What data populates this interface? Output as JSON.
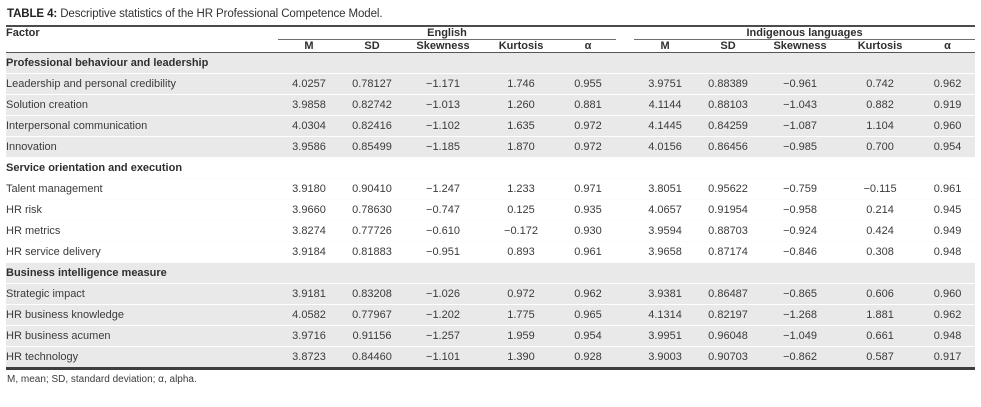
{
  "title": {
    "label": "TABLE 4:",
    "text": "Descriptive statistics of the HR Professional Competence Model."
  },
  "table": {
    "factor_header": "Factor",
    "groups": [
      {
        "label": "English"
      },
      {
        "label": "Indigenous languages"
      }
    ],
    "subheaders": [
      "M",
      "SD",
      "Skewness",
      "Kurtosis",
      "α"
    ],
    "sections": [
      {
        "name": "Professional behaviour and leadership",
        "shaded": true,
        "rows": [
          {
            "factor": "Leadership and personal credibility",
            "english": [
              "4.0257",
              "0.78127",
              "−1.171",
              "1.746",
              "0.955"
            ],
            "indigenous": [
              "3.9751",
              "0.88389",
              "−0.961",
              "0.742",
              "0.962"
            ]
          },
          {
            "factor": "Solution creation",
            "english": [
              "3.9858",
              "0.82742",
              "−1.013",
              "1.260",
              "0.881"
            ],
            "indigenous": [
              "4.1144",
              "0.88103",
              "−1.043",
              "0.882",
              "0.919"
            ]
          },
          {
            "factor": "Interpersonal communication",
            "english": [
              "4.0304",
              "0.82416",
              "−1.102",
              "1.635",
              "0.972"
            ],
            "indigenous": [
              "4.1445",
              "0.84259",
              "−1.087",
              "1.104",
              "0.960"
            ]
          },
          {
            "factor": "Innovation",
            "english": [
              "3.9586",
              "0.85499",
              "−1.185",
              "1.870",
              "0.972"
            ],
            "indigenous": [
              "4.0156",
              "0.86456",
              "−0.985",
              "0.700",
              "0.954"
            ]
          }
        ]
      },
      {
        "name": "Service orientation and execution",
        "shaded": false,
        "rows": [
          {
            "factor": "Talent management",
            "english": [
              "3.9180",
              "0.90410",
              "−1.247",
              "1.233",
              "0.971"
            ],
            "indigenous": [
              "3.8051",
              "0.95622",
              "−0.759",
              "−0.115",
              "0.961"
            ]
          },
          {
            "factor": "HR risk",
            "english": [
              "3.9660",
              "0.78630",
              "−0.747",
              "0.125",
              "0.935"
            ],
            "indigenous": [
              "4.0657",
              "0.91954",
              "−0.958",
              "0.214",
              "0.945"
            ]
          },
          {
            "factor": "HR metrics",
            "english": [
              "3.8274",
              "0.77726",
              "−0.610",
              "−0.172",
              "0.930"
            ],
            "indigenous": [
              "3.9594",
              "0.88703",
              "−0.924",
              "0.424",
              "0.949"
            ]
          },
          {
            "factor": "HR service delivery",
            "english": [
              "3.9184",
              "0.81883",
              "−0.951",
              "0.893",
              "0.961"
            ],
            "indigenous": [
              "3.9658",
              "0.87174",
              "−0.846",
              "0.308",
              "0.948"
            ]
          }
        ]
      },
      {
        "name": "Business intelligence measure",
        "shaded": true,
        "rows": [
          {
            "factor": "Strategic impact",
            "english": [
              "3.9181",
              "0.83208",
              "−1.026",
              "0.972",
              "0.962"
            ],
            "indigenous": [
              "3.9381",
              "0.86487",
              "−0.865",
              "0.606",
              "0.960"
            ]
          },
          {
            "factor": "HR business knowledge",
            "english": [
              "4.0582",
              "0.77967",
              "−1.202",
              "1.775",
              "0.965"
            ],
            "indigenous": [
              "4.1314",
              "0.82197",
              "−1.268",
              "1.881",
              "0.962"
            ]
          },
          {
            "factor": "HR business acumen",
            "english": [
              "3.9716",
              "0.91156",
              "−1.257",
              "1.959",
              "0.954"
            ],
            "indigenous": [
              "3.9951",
              "0.96048",
              "−1.049",
              "0.661",
              "0.948"
            ]
          },
          {
            "factor": "HR technology",
            "english": [
              "3.8723",
              "0.84460",
              "−1.101",
              "1.390",
              "0.928"
            ],
            "indigenous": [
              "3.9003",
              "0.90703",
              "−0.862",
              "0.587",
              "0.917"
            ]
          }
        ]
      }
    ]
  },
  "footnote": "M, mean; SD, standard deviation; α, alpha."
}
